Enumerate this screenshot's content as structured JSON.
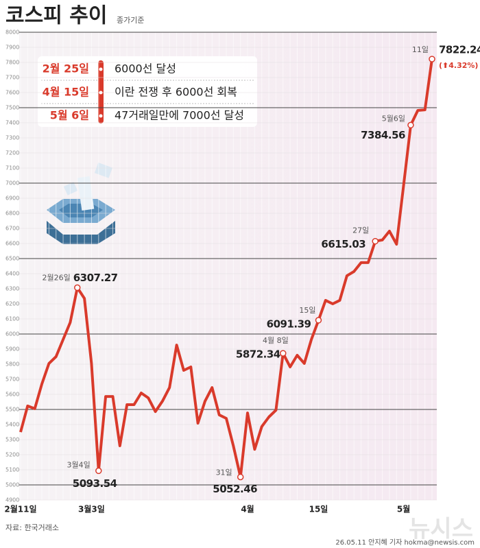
{
  "chart_data": {
    "type": "line",
    "title": "코스피 추이",
    "subtitle": "종가기준",
    "categories": [
      "2월11일",
      null,
      null,
      null,
      null,
      null,
      null,
      null,
      null,
      null,
      "3월3일",
      null,
      null,
      null,
      null,
      null,
      null,
      null,
      null,
      null,
      null,
      null,
      null,
      null,
      null,
      null,
      null,
      null,
      null,
      null,
      null,
      null,
      "4월",
      null,
      null,
      null,
      null,
      null,
      null,
      null,
      null,
      null,
      "15일",
      null,
      null,
      null,
      null,
      null,
      null,
      null,
      null,
      null,
      null,
      null,
      "5월",
      null,
      null,
      null,
      null
    ],
    "values": [
      5350,
      5523,
      5505,
      5668,
      5805,
      5850,
      5964,
      6077,
      6307.27,
      6236,
      5805,
      5093.54,
      5586,
      5586,
      5259,
      5532,
      5532,
      5609,
      5577,
      5486,
      5555,
      5645,
      5927,
      5759,
      5782,
      5409,
      5555,
      5645,
      5464,
      5441,
      5259,
      5052.46,
      5477,
      5236,
      5386,
      5450,
      5495,
      5872.34,
      5782,
      5859,
      5805,
      5964,
      6091.39,
      6223,
      6200,
      6223,
      6386,
      6414,
      6473,
      6473,
      6615.03,
      6623,
      6682,
      6595,
      6986,
      7384.56,
      7482,
      7486,
      7822.24
    ],
    "point_labels": [
      null,
      null,
      null,
      null,
      null,
      null,
      null,
      null,
      "2월26일",
      null,
      null,
      "3월4일",
      null,
      null,
      null,
      null,
      null,
      null,
      null,
      null,
      null,
      null,
      null,
      null,
      null,
      null,
      null,
      null,
      null,
      null,
      null,
      "31일",
      null,
      null,
      null,
      null,
      null,
      "4월 8일",
      null,
      null,
      null,
      null,
      "15일",
      null,
      null,
      null,
      null,
      null,
      null,
      null,
      "27일",
      null,
      null,
      null,
      null,
      "5월6일",
      null,
      null,
      "11일"
    ],
    "change_label": "(⬆4.32%)",
    "color": "#d93a2b",
    "ylim": [
      4900,
      8000
    ],
    "yticks": [
      4900,
      5000,
      5100,
      5200,
      5300,
      5400,
      5500,
      5600,
      5700,
      5800,
      5900,
      6000,
      6100,
      6200,
      6300,
      6400,
      6500,
      6600,
      6700,
      6800,
      6900,
      7000,
      7100,
      7200,
      7300,
      7400,
      7500,
      7600,
      7700,
      7800,
      7900,
      8000
    ],
    "grid": true,
    "milestones": [
      {
        "date": "2월 25일",
        "text": "6000선 달성"
      },
      {
        "date": "4월 15일",
        "text": "이란 전쟁 후 6000선 회복"
      },
      {
        "date": "5월 6일",
        "text": "47거래일만에 7000선 달성"
      }
    ],
    "source": "자료: 한국거래소",
    "credit": "26.05.11 안지혜 기자 hokma@newsis.com",
    "watermark": "뉴시스"
  }
}
